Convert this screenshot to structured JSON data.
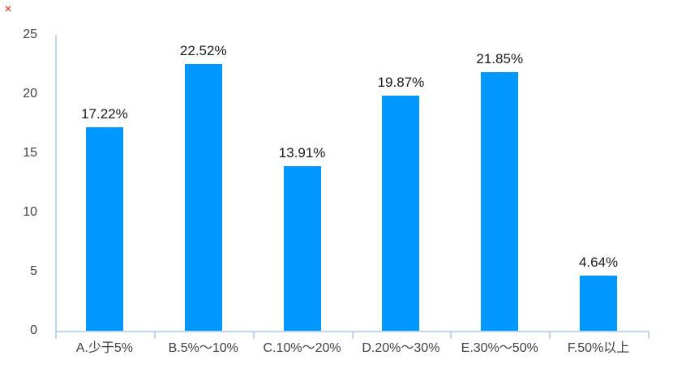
{
  "marks": {
    "corner_mark": "✕",
    "corner_mark_color": "#e8301c"
  },
  "chart_data": {
    "type": "bar",
    "title": "",
    "xlabel": "",
    "ylabel": "",
    "categories": [
      "A.少于5%",
      "B.5%～10%",
      "C.10%～20%",
      "D.20%～30%",
      "E.30%～50%",
      "F.50%以上"
    ],
    "values": [
      17.22,
      22.52,
      13.91,
      19.87,
      21.85,
      4.64
    ],
    "value_labels": [
      "17.22%",
      "22.52%",
      "13.91%",
      "19.87%",
      "21.85%",
      "4.64%"
    ],
    "y_ticks": [
      0,
      5,
      10,
      15,
      20,
      25
    ],
    "ylim": [
      0,
      25
    ],
    "grid": false,
    "legend": false,
    "bar_color": "#0098fe",
    "axis_color": "#bfd6ef",
    "value_label_color": "#1a1a1a",
    "tick_label_color": "#404040"
  }
}
